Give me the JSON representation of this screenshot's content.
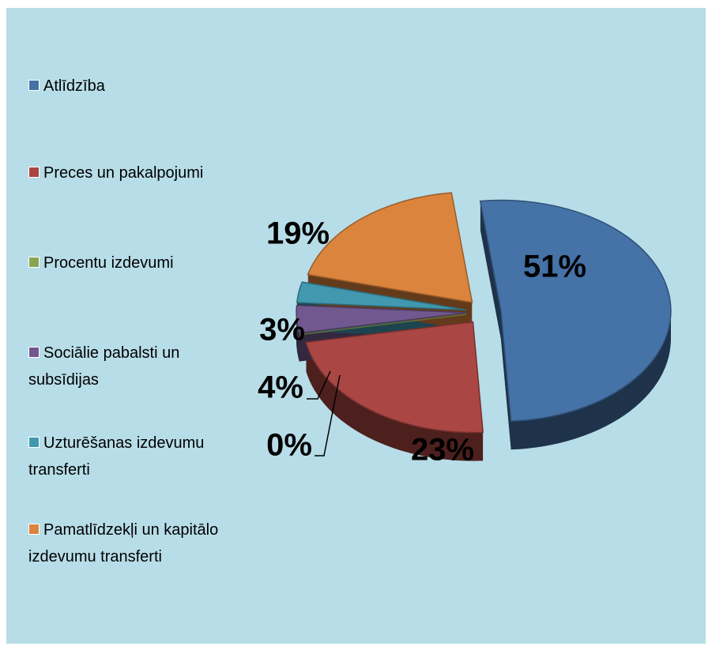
{
  "chart_data": {
    "type": "pie",
    "categories": [
      "Atlīdzība",
      "Preces un pakalpojumi",
      "Procentu izdevumi",
      "Sociālie pabalsti un subsīdijas",
      "Uzturēšanas izdevumu transferti",
      "Pamatlīdzekļi un kapitālo izdevumu transferti"
    ],
    "values": [
      51,
      23,
      0,
      4,
      3,
      19
    ],
    "value_labels": [
      "51%",
      "23%",
      "0%",
      "4%",
      "3%",
      "19%"
    ],
    "colors": [
      "#4572a7",
      "#aa4643",
      "#89a54e",
      "#71588f",
      "#4198af",
      "#db843d"
    ],
    "legend": "left"
  }
}
